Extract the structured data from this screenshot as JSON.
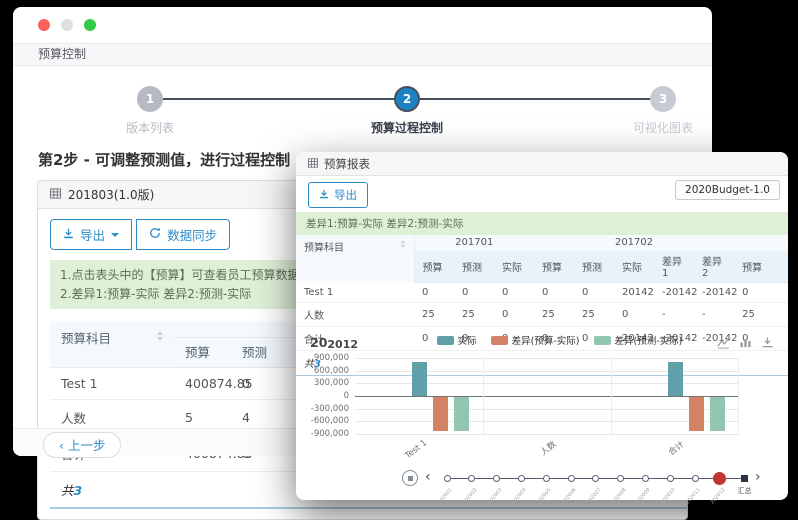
{
  "colors": {
    "accent_blue": "#2e8bc7",
    "step_active_blue": "#1d82c4",
    "alert_green_bg": "#dff0d8",
    "series_actual": "#61a0a8",
    "series_diff1": "#d48265",
    "series_diff2": "#91c7ae",
    "timeline_current_red": "#c23531"
  },
  "main_window": {
    "traffic_lights": [
      "close",
      "minimize",
      "zoom"
    ],
    "page_title": "预算控制",
    "stepper": {
      "steps": [
        {
          "num": "1",
          "label": "版本列表",
          "state": "done"
        },
        {
          "num": "2",
          "label": "预算过程控制",
          "state": "active"
        },
        {
          "num": "3",
          "label": "可视化图表",
          "state": "pending"
        }
      ]
    },
    "step_heading": "第2步 - 可调整预测值，进行过程控制",
    "version_panel": {
      "title": "201803(1.0版)",
      "export_button": "导出",
      "sync_button": "数据同步",
      "notice_lines": [
        "1.点击表头中的【预算】可查看员工预算数据，点击【实际】可查看员工实际",
        "2.差异1:预算-实际 差异2:预测-实际"
      ],
      "table": {
        "subject_column": "预算科目",
        "columns": [
          "预算",
          "预测",
          ""
        ],
        "rows": [
          {
            "subject": "Test 1",
            "values": [
              "400874.85",
              "0",
              ""
            ]
          },
          {
            "subject": "人数",
            "values": [
              "5",
              "4",
              ""
            ]
          },
          {
            "subject": "合计",
            "values": [
              "400874.85",
              "0",
              ""
            ]
          }
        ],
        "total_prefix": "共",
        "total_count": "3"
      }
    },
    "prev_button": "‹ 上一步"
  },
  "report_window": {
    "panel_title": "预算报表",
    "export_button": "导出",
    "version_selector": "2020Budget-1.0",
    "notice": "差异1:预算-实际 差异2:预测-实际",
    "table": {
      "subject_column": "预算科目",
      "column_groups": [
        {
          "label": "201701",
          "span": 3
        },
        {
          "label": "201702",
          "span": 5
        },
        {
          "label": "",
          "span": 1
        }
      ],
      "columns": [
        "预算",
        "预测",
        "实际",
        "预算",
        "预测",
        "实际",
        "差异1",
        "差异2",
        "预算"
      ],
      "rows": [
        {
          "subject": "Test 1",
          "values": [
            "0",
            "0",
            "0",
            "0",
            "0",
            "20142",
            "-20142",
            "-20142",
            "0"
          ]
        },
        {
          "subject": "人数",
          "values": [
            "25",
            "25",
            "0",
            "25",
            "25",
            "0",
            "-",
            "-",
            "25"
          ]
        },
        {
          "subject": "合计",
          "values": [
            "0",
            "0",
            "0",
            "0",
            "0",
            "20142",
            "-20142",
            "-20142",
            "0"
          ]
        }
      ],
      "total_prefix": "共",
      "total_count": "3"
    }
  },
  "chart_data": {
    "type": "bar",
    "title": "202012",
    "categories": [
      "Test 1",
      "人数",
      "合计"
    ],
    "series": [
      {
        "name": "实际",
        "color": "#61a0a8",
        "values": [
          810000,
          0,
          810000
        ]
      },
      {
        "name": "差异(预算-实际)",
        "color": "#d48265",
        "values": [
          -810000,
          0,
          -810000
        ]
      },
      {
        "name": "差异(预测-实际)",
        "color": "#91c7ae",
        "values": [
          -810000,
          0,
          -810000
        ]
      }
    ],
    "ylim": [
      -900000,
      900000
    ],
    "ytick_step": 300000,
    "ytick_labels": [
      "900,000",
      "600,000",
      "300,000",
      "0",
      "-300,000",
      "-600,000",
      "-900,000"
    ],
    "grid": true,
    "legend_position": "top-center",
    "toolbox_icons": [
      "line-chart",
      "bar-chart",
      "download"
    ],
    "timeline": {
      "points": [
        "202001",
        "202002",
        "202003",
        "202004",
        "202005",
        "202006",
        "202007",
        "202008",
        "202009",
        "202010",
        "202011",
        "202012",
        "汇总"
      ],
      "current": "202012",
      "controls": [
        "pause",
        "prev",
        "next"
      ]
    }
  }
}
